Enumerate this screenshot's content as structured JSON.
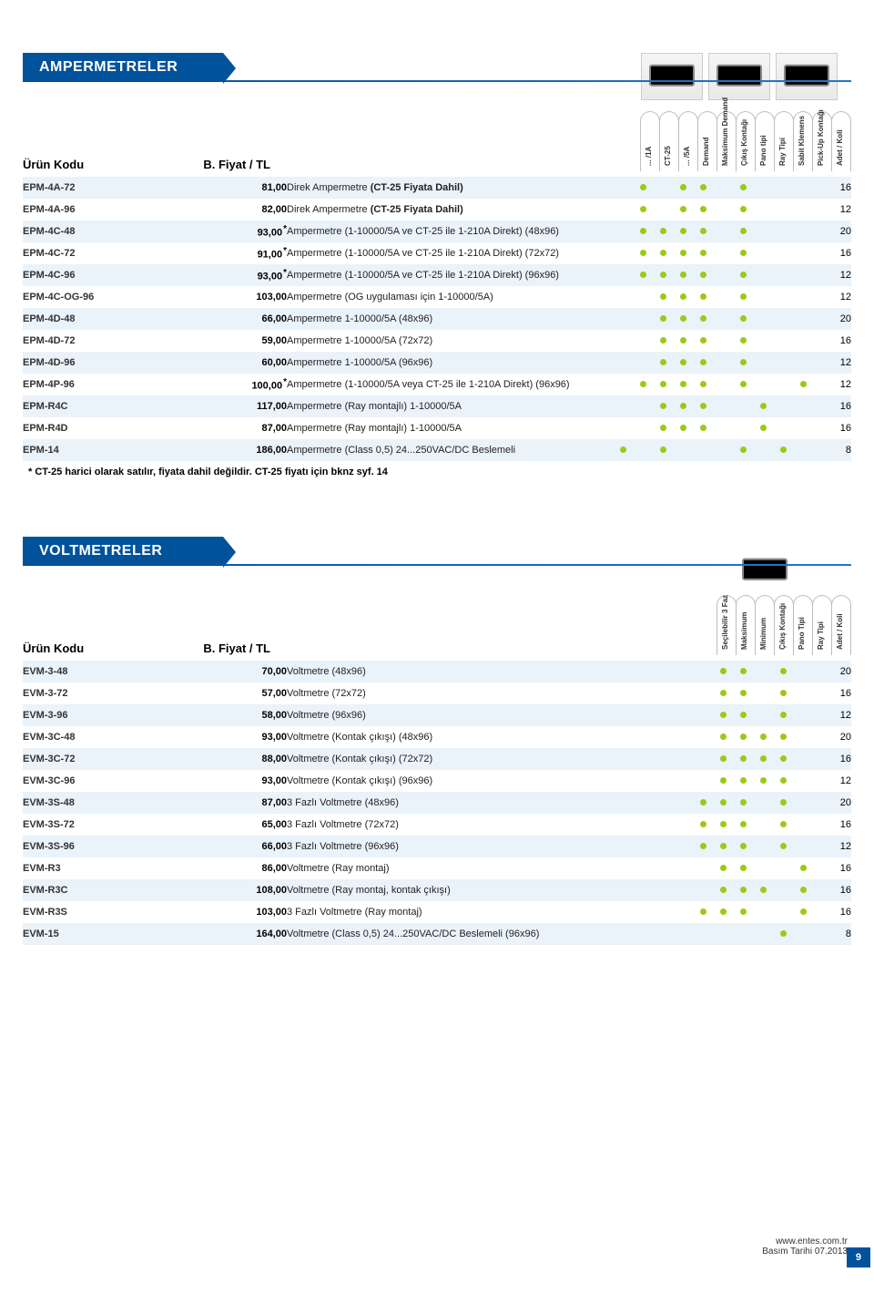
{
  "sectionA": {
    "title": "AMPERMETRELER",
    "codeHeader": "Ürün Kodu",
    "priceHeader": "B. Fiyat / TL",
    "featureCols": [
      "... /1A",
      "CT-25",
      "... /5A",
      "Demand",
      "Maksimum\nDemand",
      "Çıkış Kontağı",
      "Pano tipi",
      "Ray Tipi",
      "Sabit Klemens",
      "Pick-Up Kontağı",
      "Adet / Koli"
    ],
    "rows": [
      {
        "code": "EPM-4A-72",
        "price": "81,00",
        "star": false,
        "desc": "Direk Ampermetre",
        "tag": "(CT-25 Fiyata Dahil)",
        "feat": [
          0,
          1,
          0,
          1,
          1,
          0,
          1,
          0,
          0,
          0
        ],
        "qty": "16"
      },
      {
        "code": "EPM-4A-96",
        "price": "82,00",
        "star": false,
        "desc": "Direk Ampermetre",
        "tag": "(CT-25 Fiyata Dahil)",
        "feat": [
          0,
          1,
          0,
          1,
          1,
          0,
          1,
          0,
          0,
          0
        ],
        "qty": "12"
      },
      {
        "code": "EPM-4C-48",
        "price": "93,00",
        "star": true,
        "desc": "Ampermetre (1-10000/5A ve CT-25 ile 1-210A Direkt) (48x96)",
        "tag": "",
        "feat": [
          0,
          1,
          1,
          1,
          1,
          0,
          1,
          0,
          0,
          0
        ],
        "qty": "20"
      },
      {
        "code": "EPM-4C-72",
        "price": "91,00",
        "star": true,
        "desc": "Ampermetre (1-10000/5A ve CT-25 ile 1-210A Direkt) (72x72)",
        "tag": "",
        "feat": [
          0,
          1,
          1,
          1,
          1,
          0,
          1,
          0,
          0,
          0
        ],
        "qty": "16"
      },
      {
        "code": "EPM-4C-96",
        "price": "93,00",
        "star": true,
        "desc": "Ampermetre (1-10000/5A ve CT-25 ile 1-210A Direkt) (96x96)",
        "tag": "",
        "feat": [
          0,
          1,
          1,
          1,
          1,
          0,
          1,
          0,
          0,
          0
        ],
        "qty": "12"
      },
      {
        "code": "EPM-4C-OG-96",
        "price": "103,00",
        "star": false,
        "desc": "Ampermetre (OG uygulaması için 1-10000/5A)",
        "tag": "",
        "feat": [
          0,
          0,
          1,
          1,
          1,
          0,
          1,
          0,
          0,
          0
        ],
        "qty": "12"
      },
      {
        "code": "EPM-4D-48",
        "price": "66,00",
        "star": false,
        "desc": "Ampermetre 1-10000/5A (48x96)",
        "tag": "",
        "feat": [
          0,
          0,
          1,
          1,
          1,
          0,
          1,
          0,
          0,
          0
        ],
        "qty": "20"
      },
      {
        "code": "EPM-4D-72",
        "price": "59,00",
        "star": false,
        "desc": "Ampermetre 1-10000/5A (72x72)",
        "tag": "",
        "feat": [
          0,
          0,
          1,
          1,
          1,
          0,
          1,
          0,
          0,
          0
        ],
        "qty": "16"
      },
      {
        "code": "EPM-4D-96",
        "price": "60,00",
        "star": false,
        "desc": "Ampermetre 1-10000/5A (96x96)",
        "tag": "",
        "feat": [
          0,
          0,
          1,
          1,
          1,
          0,
          1,
          0,
          0,
          0
        ],
        "qty": "12"
      },
      {
        "code": "EPM-4P-96",
        "price": "100,00",
        "star": true,
        "desc": "Ampermetre (1-10000/5A veya CT-25 ile 1-210A Direkt) (96x96)",
        "tag": "",
        "feat": [
          0,
          1,
          1,
          1,
          1,
          0,
          1,
          0,
          0,
          1
        ],
        "qty": "12"
      },
      {
        "code": "EPM-R4C",
        "price": "117,00",
        "star": false,
        "desc": "Ampermetre (Ray montajlı) 1-10000/5A",
        "tag": "",
        "feat": [
          0,
          0,
          1,
          1,
          1,
          0,
          0,
          1,
          0,
          0
        ],
        "qty": "16"
      },
      {
        "code": "EPM-R4D",
        "price": "87,00",
        "star": false,
        "desc": "Ampermetre (Ray montajlı) 1-10000/5A",
        "tag": "",
        "feat": [
          0,
          0,
          1,
          1,
          1,
          0,
          0,
          1,
          0,
          0
        ],
        "qty": "16"
      },
      {
        "code": "EPM-14",
        "price": "186,00",
        "star": false,
        "desc": "Ampermetre (Class 0,5) 24...250VAC/DC Beslemeli",
        "tag": "",
        "feat": [
          1,
          0,
          1,
          0,
          0,
          0,
          1,
          0,
          1,
          0
        ],
        "qty": "8"
      }
    ],
    "footnote": "* CT-25 harici olarak satılır, fiyata dahil değildir. CT-25 fiyatı için bknz syf. 14"
  },
  "sectionB": {
    "title": "VOLTMETRELER",
    "codeHeader": "Ürün Kodu",
    "priceHeader": "B. Fiyat / TL",
    "featureCols": [
      "Seçilebilir 3 Faz",
      "Maksimum",
      "Minimum",
      "Çıkış Kontağı",
      "Pano Tipi",
      "Ray Tipi",
      "Adet / Koli"
    ],
    "rows": [
      {
        "code": "EVM-3-48",
        "price": "70,00",
        "desc": "Voltmetre (48x96)",
        "feat": [
          0,
          1,
          1,
          0,
          1,
          0
        ],
        "qty": "20"
      },
      {
        "code": "EVM-3-72",
        "price": "57,00",
        "desc": "Voltmetre (72x72)",
        "feat": [
          0,
          1,
          1,
          0,
          1,
          0
        ],
        "qty": "16"
      },
      {
        "code": "EVM-3-96",
        "price": "58,00",
        "desc": "Voltmetre (96x96)",
        "feat": [
          0,
          1,
          1,
          0,
          1,
          0
        ],
        "qty": "12"
      },
      {
        "code": "EVM-3C-48",
        "price": "93,00",
        "desc": "Voltmetre (Kontak çıkışı) (48x96)",
        "feat": [
          0,
          1,
          1,
          1,
          1,
          0
        ],
        "qty": "20"
      },
      {
        "code": "EVM-3C-72",
        "price": "88,00",
        "desc": "Voltmetre (Kontak çıkışı) (72x72)",
        "feat": [
          0,
          1,
          1,
          1,
          1,
          0
        ],
        "qty": "16"
      },
      {
        "code": "EVM-3C-96",
        "price": "93,00",
        "desc": "Voltmetre (Kontak çıkışı) (96x96)",
        "feat": [
          0,
          1,
          1,
          1,
          1,
          0
        ],
        "qty": "12"
      },
      {
        "code": "EVM-3S-48",
        "price": "87,00",
        "desc": "3 Fazlı Voltmetre (48x96)",
        "feat": [
          1,
          1,
          1,
          0,
          1,
          0
        ],
        "qty": "20"
      },
      {
        "code": "EVM-3S-72",
        "price": "65,00",
        "desc": "3 Fazlı Voltmetre (72x72)",
        "feat": [
          1,
          1,
          1,
          0,
          1,
          0
        ],
        "qty": "16"
      },
      {
        "code": "EVM-3S-96",
        "price": "66,00",
        "desc": "3 Fazlı Voltmetre (96x96)",
        "feat": [
          1,
          1,
          1,
          0,
          1,
          0
        ],
        "qty": "12"
      },
      {
        "code": "EVM-R3",
        "price": "86,00",
        "desc": "Voltmetre (Ray montaj)",
        "feat": [
          0,
          1,
          1,
          0,
          0,
          1
        ],
        "qty": "16"
      },
      {
        "code": "EVM-R3C",
        "price": "108,00",
        "desc": "Voltmetre (Ray montaj, kontak çıkışı)",
        "feat": [
          0,
          1,
          1,
          1,
          0,
          1
        ],
        "qty": "16"
      },
      {
        "code": "EVM-R3S",
        "price": "103,00",
        "desc": "3 Fazlı Voltmetre (Ray montaj)",
        "feat": [
          1,
          1,
          1,
          0,
          0,
          1
        ],
        "qty": "16"
      },
      {
        "code": "EVM-15",
        "price": "164,00",
        "desc": "Voltmetre (Class 0,5)  24...250VAC/DC Beslemeli (96x96)",
        "feat": [
          0,
          0,
          0,
          0,
          1,
          0
        ],
        "qty": "8"
      }
    ]
  },
  "footer": {
    "url": "www.entes.com.tr",
    "date": "Basım Tarihi 07.2013",
    "page": "9"
  }
}
